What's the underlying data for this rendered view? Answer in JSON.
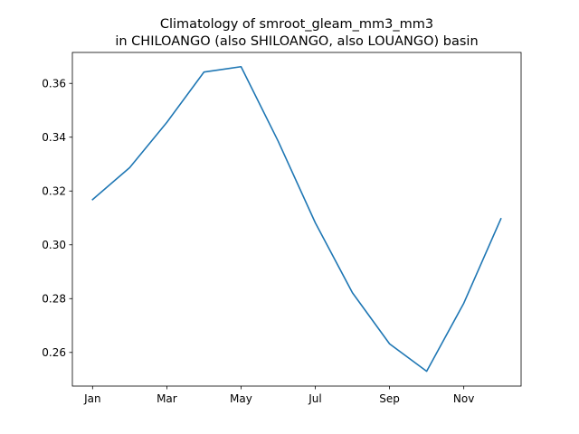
{
  "chart_data": {
    "type": "line",
    "title_line1": "Climatology of smroot_gleam_mm3_mm3",
    "title_line2": "in CHILOANGO (also SHILOANGO, also LOUANGO) basin",
    "xlabel": "",
    "ylabel": "",
    "x": [
      "Jan",
      "Feb",
      "Mar",
      "Apr",
      "May",
      "Jun",
      "Jul",
      "Aug",
      "Sep",
      "Oct",
      "Nov",
      "Dec"
    ],
    "x_tick_labels": [
      "Jan",
      "Mar",
      "May",
      "Jul",
      "Sep",
      "Nov"
    ],
    "series": [
      {
        "color": "#1f77b4",
        "values": [
          0.3168,
          0.3287,
          0.3455,
          0.3642,
          0.3662,
          0.3385,
          0.3082,
          0.2822,
          0.2632,
          0.253,
          0.2783,
          0.3097
        ]
      }
    ],
    "ylim": [
      0.2475,
      0.3715
    ],
    "y_ticks": [
      0.26,
      0.28,
      0.3,
      0.32,
      0.34,
      0.36
    ],
    "y_tick_labels": [
      "0.26",
      "0.28",
      "0.30",
      "0.32",
      "0.34",
      "0.36"
    ],
    "grid": false,
    "legend": "none"
  }
}
